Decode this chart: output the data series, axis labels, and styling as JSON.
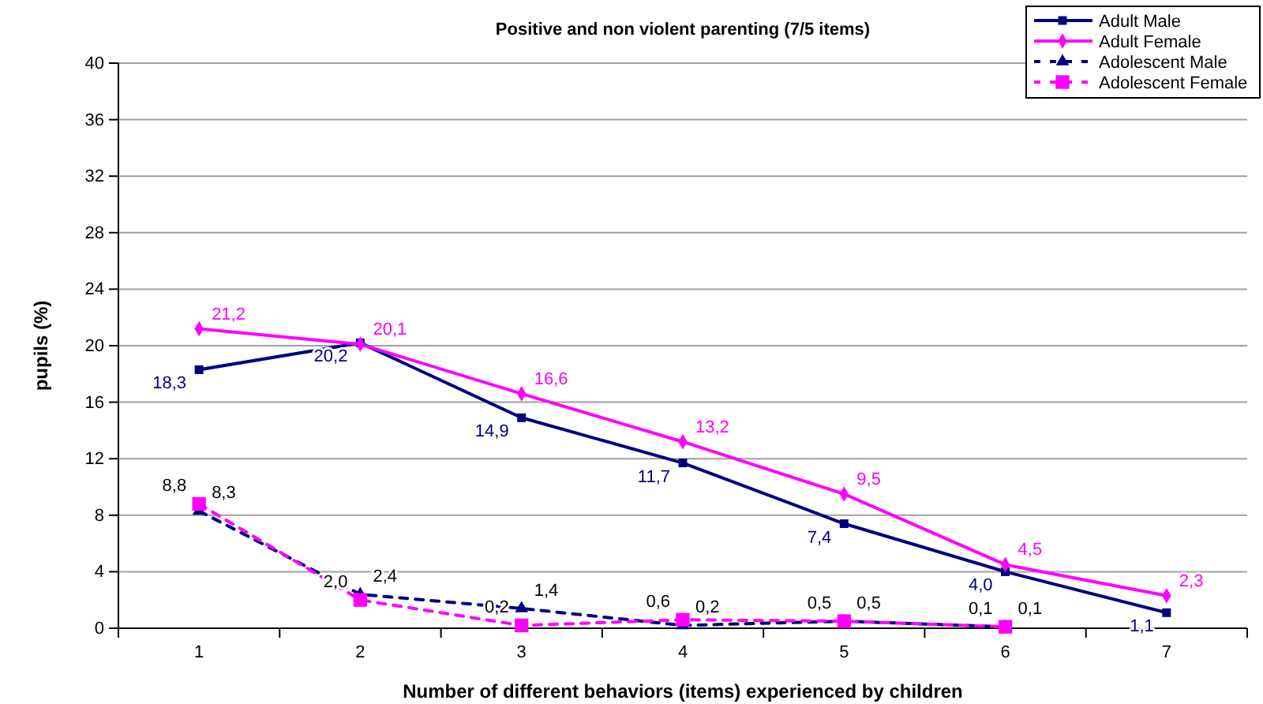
{
  "chart_data": {
    "type": "line",
    "title": "Positive and non violent parenting (7/5 items)",
    "xlabel": "Number of different behaviors (items) experienced by children",
    "ylabel": "pupils (%)",
    "categories": [
      "1",
      "2",
      "3",
      "4",
      "5",
      "6",
      "7"
    ],
    "ylim": [
      0,
      40
    ],
    "yticks": [
      0,
      4,
      8,
      12,
      16,
      20,
      24,
      28,
      32,
      36,
      40
    ],
    "grid": "y",
    "legend": "top right",
    "series": [
      {
        "name": "Adult Male",
        "color": "#000080",
        "marker": "square",
        "line_style": "solid",
        "values": [
          18.3,
          20.2,
          14.9,
          11.7,
          7.4,
          4.0,
          1.1
        ],
        "value_labels": [
          "18,3",
          "20,2",
          "14,9",
          "11,7",
          "7,4",
          "4,0",
          "1,1"
        ]
      },
      {
        "name": "Adult Female",
        "color": "#ff00ff",
        "marker": "diamond",
        "line_style": "solid",
        "values": [
          21.2,
          20.1,
          16.6,
          13.2,
          9.5,
          4.5,
          2.3
        ],
        "value_labels": [
          "21,2",
          "20,1",
          "16,6",
          "13,2",
          "9,5",
          "4,5",
          "2,3"
        ]
      },
      {
        "name": "Adolescent Male",
        "color": "#000080",
        "marker": "triangle",
        "line_style": "dashed",
        "values": [
          8.3,
          2.4,
          1.4,
          0.2,
          0.5,
          0.1,
          null
        ],
        "value_labels": [
          "8,3",
          "2,4",
          "1,4",
          "0,2",
          "0,5",
          "0,1",
          null
        ]
      },
      {
        "name": "Adolescent Female",
        "color": "#ff00ff",
        "marker": "square",
        "line_style": "dashed",
        "values": [
          8.8,
          2.0,
          0.2,
          0.6,
          0.5,
          0.1,
          null
        ],
        "value_labels": [
          "8,8",
          "2,0",
          "0,2",
          "0,6",
          "0,5",
          "0,1",
          null
        ]
      }
    ]
  }
}
